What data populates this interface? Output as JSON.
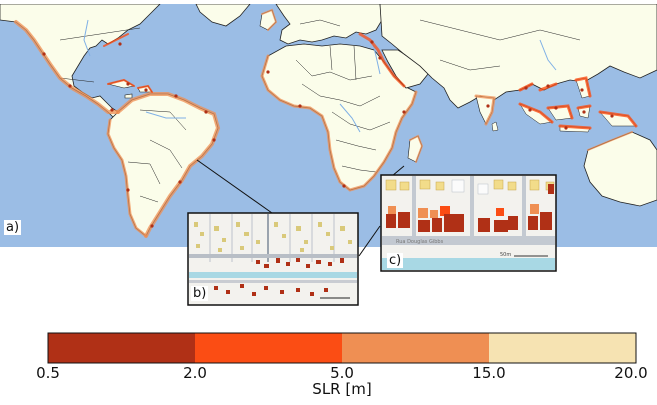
{
  "panel_labels": {
    "a": "a)",
    "b": "b)",
    "c": "c)"
  },
  "colorbar": {
    "label": "SLR [m]",
    "ticks": [
      "0.5",
      "2.0",
      "5.0",
      "15.0",
      "20.0"
    ],
    "colors": [
      "#b03016",
      "#fb4d14",
      "#ef8f53",
      "#f6e3b2"
    ]
  },
  "inset_c": {
    "street_label": "Rua Douglas Gibbs",
    "scale_label": "50m"
  },
  "colors": {
    "ocean": "#9bbde5",
    "land": "#fbfdea",
    "border": "#222222",
    "water": "#7fb0e6"
  }
}
